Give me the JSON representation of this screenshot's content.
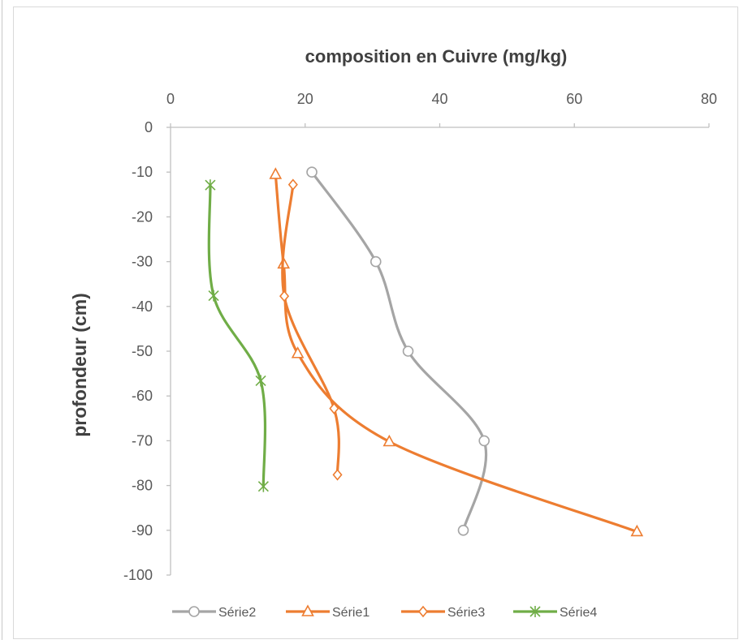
{
  "chart_data": {
    "type": "scatter",
    "title": "composition en Cuivre  (mg/kg)",
    "xlabel": "composition en Cuivre  (mg/kg)",
    "ylabel": "profondeur (cm)",
    "xlim": [
      0,
      80
    ],
    "ylim": [
      -100,
      0
    ],
    "x_ticks": [
      0,
      20,
      40,
      60,
      80
    ],
    "y_ticks": [
      0,
      -10,
      -20,
      -30,
      -40,
      -50,
      -60,
      -70,
      -80,
      -90,
      -100
    ],
    "x_axis_position": "top",
    "grid": false,
    "smooth": true,
    "legend_position": "bottom",
    "series": [
      {
        "name": "Série2",
        "color": "#a5a5a5",
        "marker": "circle",
        "x": [
          21,
          30.5,
          35.3,
          46.6,
          43.5
        ],
        "y": [
          -10,
          -30,
          -50,
          -70,
          -90
        ]
      },
      {
        "name": "Série1",
        "color": "#ed7d31",
        "marker": "triangle",
        "x": [
          15.6,
          16.8,
          18.9,
          32.5,
          69.3
        ],
        "y": [
          -10.5,
          -30.5,
          -50.5,
          -70.2,
          -90.3
        ]
      },
      {
        "name": "Série3",
        "color": "#ed7d31",
        "marker": "diamond",
        "x": [
          18.2,
          16.9,
          24.3,
          24.8
        ],
        "y": [
          -12.8,
          -37.7,
          -62.8,
          -77.6
        ]
      },
      {
        "name": "Série4",
        "color": "#70ad47",
        "marker": "star",
        "x": [
          5.9,
          6.4,
          13.4,
          13.8
        ],
        "y": [
          -12.9,
          -37.6,
          -56.6,
          -80.2
        ]
      }
    ]
  }
}
